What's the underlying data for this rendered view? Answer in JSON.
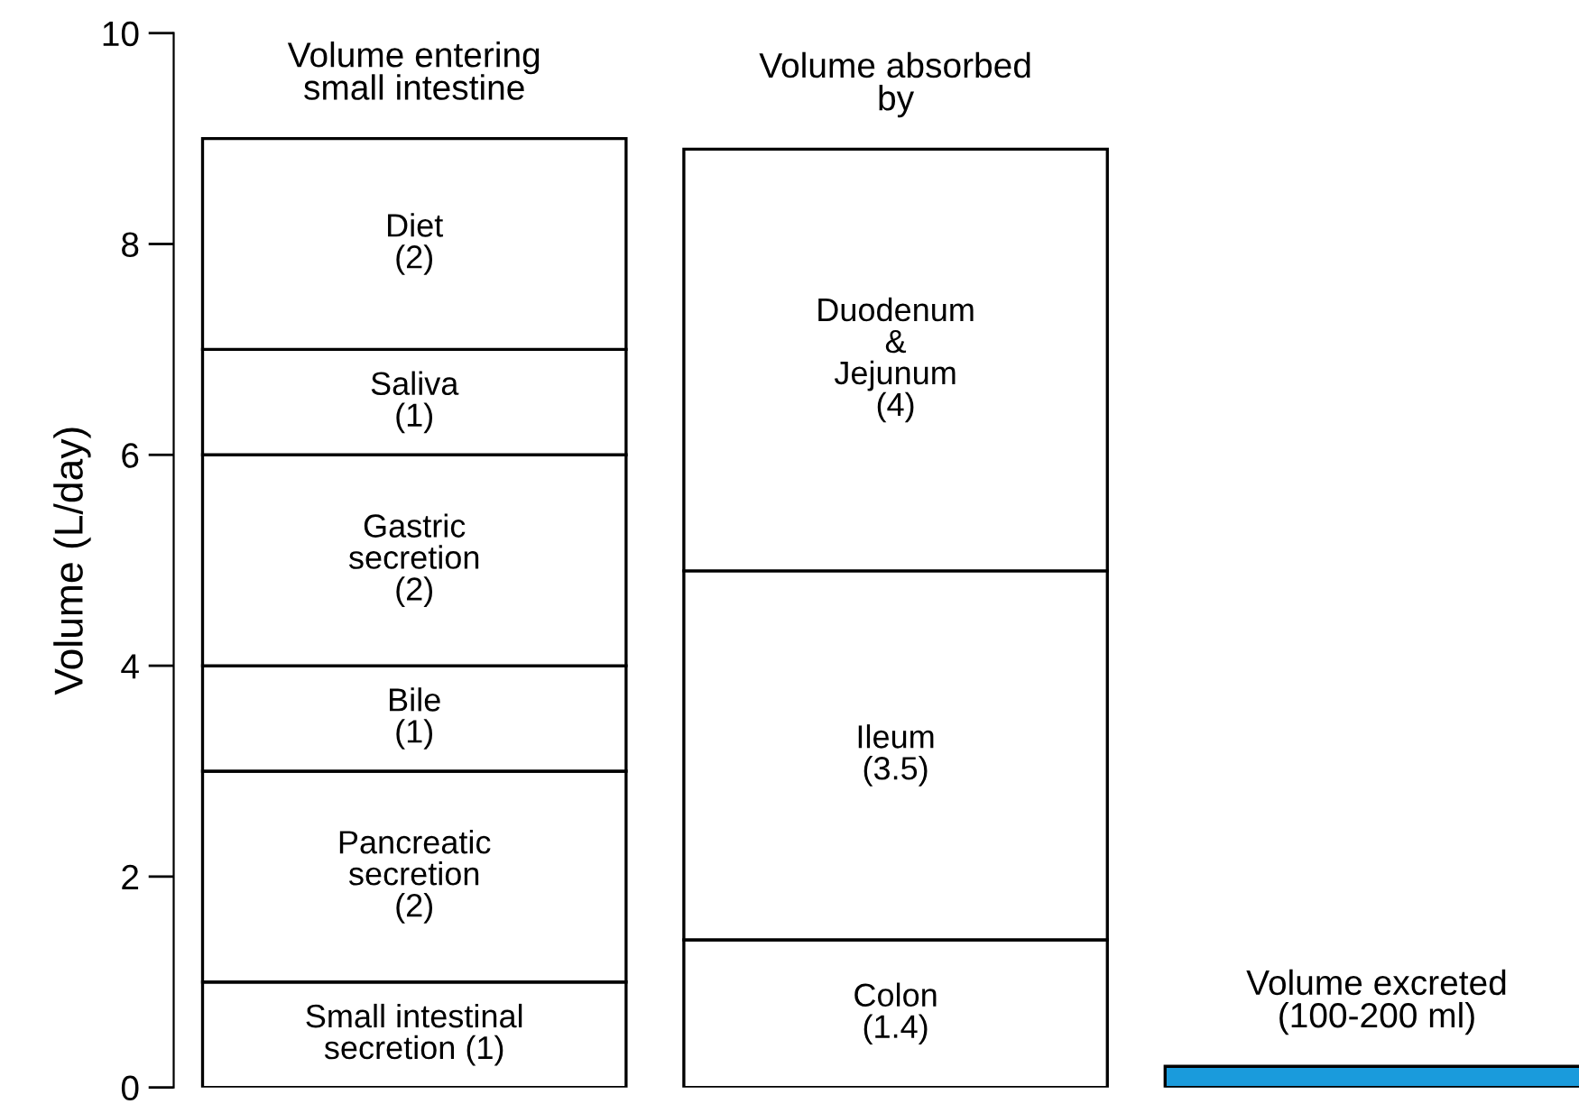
{
  "chart_data": {
    "type": "bar",
    "stacked": true,
    "ylabel": "Volume (L/day)",
    "categories": [
      "Volume entering\nsmall intestine",
      "Volume absorbed\nby",
      "Volume excreted\n(100-200 ml)"
    ],
    "series": [
      {
        "values": [
          1,
          1.4,
          0.2
        ],
        "value_labels": [
          "Small intestinal\nsecretion (1)",
          "Colon\n(1.4)",
          null
        ],
        "colors": [
          "#ffffff",
          "#ffffff",
          "#1a9bdc"
        ]
      },
      {
        "color": "#ffffff",
        "values": [
          2,
          3.5,
          null
        ],
        "value_labels": [
          "Pancreatic\nsecretion\n(2)",
          "Ileum\n(3.5)",
          null
        ]
      },
      {
        "color": "#ffffff",
        "values": [
          1,
          4,
          null
        ],
        "value_labels": [
          "Bile\n(1)",
          "Duodenum\n&\nJejunum\n(4)",
          null
        ]
      },
      {
        "color": "#ffffff",
        "values": [
          2,
          null,
          null
        ],
        "value_labels": [
          "Gastric\nsecretion\n(2)",
          null,
          null
        ]
      },
      {
        "color": "#ffffff",
        "values": [
          1,
          null,
          null
        ],
        "value_labels": [
          "Saliva\n(1)",
          null,
          null
        ]
      },
      {
        "color": "#ffffff",
        "values": [
          2,
          null,
          null
        ],
        "value_labels": [
          "Diet\n(2)",
          null,
          null
        ]
      }
    ],
    "ylim": [
      0,
      10
    ],
    "yticks": [
      0,
      2,
      4,
      6,
      8,
      10
    ],
    "grid": false,
    "legend": false
  }
}
